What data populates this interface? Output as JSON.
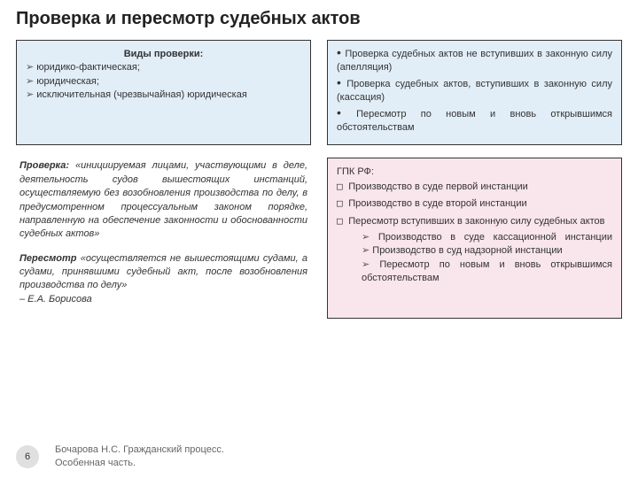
{
  "title": "Проверка и пересмотр судебных актов",
  "top_left": {
    "heading": "Виды проверки:",
    "items": [
      "юридико-фактическая;",
      "юридическая;",
      "исключительная (чрезвычайная) юридическая"
    ]
  },
  "top_right": {
    "items": [
      "Проверка судебных актов не вступивших в законную силу (апелляция)",
      "Проверка судебных актов, вступивших в законную силу (кассация)",
      "Пересмотр по новым и вновь открывшимся обстоятельствам"
    ]
  },
  "left_text": {
    "proverka_label": "Проверка:",
    "proverka_body": "«инициируемая лицами, участвующими в деле, деятельность судов вышестоящих инстанций, осуществляемую без возобновления производства по делу, в предусмотренном процессуальным законом порядке, направленную на обеспечение законности и обоснованности судебных актов»",
    "peresmotr_label": "Пересмотр",
    "peresmotr_body": "«осуществляется не вышестоящими судами, а судами, принявшими судебный акт, после возобновления производства по делу»",
    "author": "– Е.А. Борисова"
  },
  "bottom_right": {
    "heading": "ГПК РФ:",
    "items": [
      "Производство в суде первой инстанции",
      "Производство в суде второй инстанции",
      "Пересмотр вступивших в законную силу судебных актов"
    ],
    "subitems": [
      "Производство в суде кассационной инстанции",
      "Производство в суд надзорной инстанции",
      "Пересмотр по новым и вновь открывшимся обстоятельствам"
    ]
  },
  "page_number": "6",
  "credit_line1": "Бочарова Н.С. Гражданский процесс.",
  "credit_line2": "Особенная часть."
}
